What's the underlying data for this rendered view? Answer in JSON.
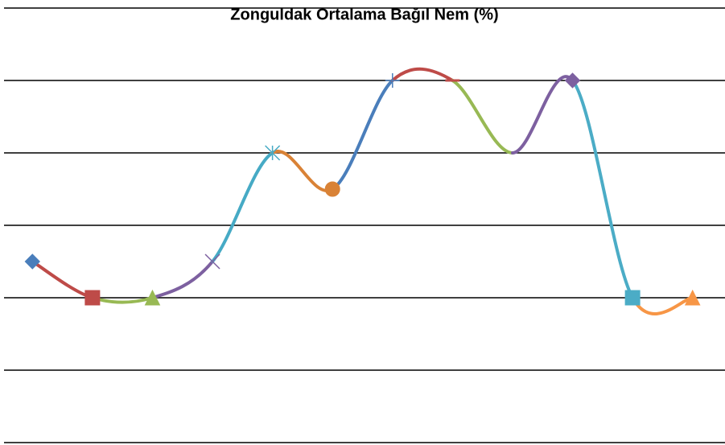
{
  "chart_data": {
    "type": "line",
    "title": "Zonguldak Ortalama Bağıl Nem (%)",
    "categories": [
      null,
      null,
      null,
      null,
      null,
      null,
      null,
      null,
      null,
      null,
      null,
      null
    ],
    "values": [
      71,
      70,
      70,
      71,
      74,
      73,
      76,
      76,
      74,
      76,
      70,
      70
    ],
    "colors": [
      "#4a7ebb",
      "#be4b48",
      "#98b954",
      "#7d60a0",
      "#46aac5",
      "#d98236",
      "#4a7ebb",
      "#be4b48",
      "#98b954",
      "#7d60a0",
      "#4bacc6",
      "#f79646"
    ],
    "markers": [
      "diamond",
      "square",
      "triangle",
      "x",
      "star",
      "circle",
      "plus",
      "dash",
      "none",
      "diamond",
      "square",
      "triangle"
    ],
    "smooth": true,
    "ylim": [
      66,
      78
    ],
    "yticks": [
      66,
      68,
      70,
      72,
      74,
      76,
      78
    ],
    "grid": true
  }
}
